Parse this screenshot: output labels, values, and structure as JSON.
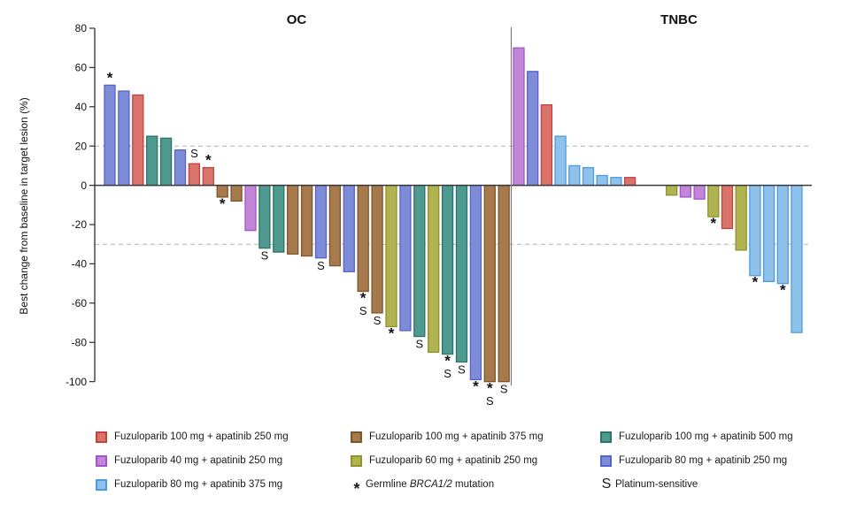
{
  "chart_data": {
    "type": "bar",
    "subtype": "waterfall",
    "ylabel": "Best change from baseline in target lesion (%)",
    "ylim": [
      -100,
      80
    ],
    "yticks": [
      80,
      60,
      40,
      20,
      0,
      -20,
      -40,
      -60,
      -80,
      -100
    ],
    "reference_lines_y": [
      20,
      -30
    ],
    "grid": "off",
    "legend_position": "bottom",
    "arms": {
      "f100a250": {
        "label": "Fuzuloparib 100 mg + apatinib 250 mg",
        "fill": "#D9736C",
        "stroke": "#C0443C"
      },
      "f100a375": {
        "label": "Fuzuloparib 100 mg + apatinib 375 mg",
        "fill": "#A67A4D",
        "stroke": "#7E5528"
      },
      "f100a500": {
        "label": "Fuzuloparib 100 mg + apatinib 500 mg",
        "fill": "#4E9A90",
        "stroke": "#2F7268"
      },
      "f40a250": {
        "label": "Fuzuloparib 40 mg + apatinib 250 mg",
        "fill": "#C286D8",
        "stroke": "#A455C9"
      },
      "f60a250": {
        "label": "Fuzuloparib 60 mg + apatinib 250 mg",
        "fill": "#B1B350",
        "stroke": "#8E9428"
      },
      "f80a250": {
        "label": "Fuzuloparib 80 mg + apatinib 250 mg",
        "fill": "#7E8CD8",
        "stroke": "#5563CE"
      },
      "f80a375": {
        "label": "Fuzuloparib 80 mg + apatinib 375 mg",
        "fill": "#8FC2EB",
        "stroke": "#4C9BE0"
      }
    },
    "markers": {
      "brca": {
        "symbol": "*",
        "label_prefix": "Germline ",
        "label_italic": "BRCA1/2",
        "label_suffix": " mutation"
      },
      "ps": {
        "symbol": "S",
        "label": "Platinum-sensitive"
      }
    },
    "groups": [
      {
        "label": "OC",
        "bars": [
          {
            "value": 51,
            "arm": "f80a250",
            "flags": [
              "brca"
            ]
          },
          {
            "value": 48,
            "arm": "f80a250",
            "flags": []
          },
          {
            "value": 46,
            "arm": "f100a250",
            "flags": []
          },
          {
            "value": 25,
            "arm": "f100a500",
            "flags": []
          },
          {
            "value": 24,
            "arm": "f100a500",
            "flags": []
          },
          {
            "value": 18,
            "arm": "f80a250",
            "flags": []
          },
          {
            "value": 11,
            "arm": "f100a250",
            "flags": [
              "ps"
            ]
          },
          {
            "value": 9,
            "arm": "f100a250",
            "flags": [
              "brca"
            ]
          },
          {
            "value": -6,
            "arm": "f100a375",
            "flags": [
              "brca"
            ]
          },
          {
            "value": -8,
            "arm": "f100a375",
            "flags": []
          },
          {
            "value": -23,
            "arm": "f40a250",
            "flags": []
          },
          {
            "value": -32,
            "arm": "f100a500",
            "flags": [
              "ps"
            ]
          },
          {
            "value": -34,
            "arm": "f100a500",
            "flags": []
          },
          {
            "value": -35,
            "arm": "f100a375",
            "flags": []
          },
          {
            "value": -36,
            "arm": "f100a375",
            "flags": []
          },
          {
            "value": -37,
            "arm": "f80a250",
            "flags": [
              "ps"
            ]
          },
          {
            "value": -41,
            "arm": "f100a375",
            "flags": []
          },
          {
            "value": -44,
            "arm": "f80a250",
            "flags": []
          },
          {
            "value": -54,
            "arm": "f100a375",
            "flags": [
              "brca",
              "ps"
            ]
          },
          {
            "value": -65,
            "arm": "f100a375",
            "flags": [
              "ps"
            ]
          },
          {
            "value": -72,
            "arm": "f60a250",
            "flags": [
              "brca"
            ]
          },
          {
            "value": -74,
            "arm": "f80a250",
            "flags": []
          },
          {
            "value": -77,
            "arm": "f100a500",
            "flags": [
              "ps"
            ]
          },
          {
            "value": -85,
            "arm": "f60a250",
            "flags": []
          },
          {
            "value": -86,
            "arm": "f100a500",
            "flags": [
              "brca",
              "ps"
            ]
          },
          {
            "value": -90,
            "arm": "f100a500",
            "flags": [
              "ps"
            ]
          },
          {
            "value": -99,
            "arm": "f80a250",
            "flags": [
              "brca"
            ]
          },
          {
            "value": -100,
            "arm": "f100a375",
            "flags": [
              "brca",
              "ps"
            ]
          },
          {
            "value": -100,
            "arm": "f100a375",
            "flags": [
              "ps"
            ]
          }
        ]
      },
      {
        "label": "TNBC",
        "bars": [
          {
            "value": 70,
            "arm": "f40a250",
            "flags": []
          },
          {
            "value": 58,
            "arm": "f80a250",
            "flags": []
          },
          {
            "value": 41,
            "arm": "f100a250",
            "flags": []
          },
          {
            "value": 25,
            "arm": "f80a375",
            "flags": []
          },
          {
            "value": 10,
            "arm": "f80a375",
            "flags": []
          },
          {
            "value": 9,
            "arm": "f80a375",
            "flags": []
          },
          {
            "value": 5,
            "arm": "f80a375",
            "flags": []
          },
          {
            "value": 4,
            "arm": "f80a375",
            "flags": []
          },
          {
            "value": 4,
            "arm": "f100a250",
            "flags": []
          },
          {
            "value": 0,
            "arm": null,
            "flags": []
          },
          {
            "value": 0,
            "arm": null,
            "flags": []
          },
          {
            "value": -5,
            "arm": "f60a250",
            "flags": []
          },
          {
            "value": -6,
            "arm": "f40a250",
            "flags": []
          },
          {
            "value": -7,
            "arm": "f40a250",
            "flags": []
          },
          {
            "value": -16,
            "arm": "f60a250",
            "flags": [
              "brca"
            ]
          },
          {
            "value": -22,
            "arm": "f100a250",
            "flags": []
          },
          {
            "value": -33,
            "arm": "f60a250",
            "flags": []
          },
          {
            "value": -46,
            "arm": "f80a375",
            "flags": [
              "brca"
            ]
          },
          {
            "value": -49,
            "arm": "f80a375",
            "flags": []
          },
          {
            "value": -50,
            "arm": "f80a375",
            "flags": [
              "brca"
            ]
          },
          {
            "value": -75,
            "arm": "f80a375",
            "flags": []
          }
        ]
      }
    ]
  }
}
